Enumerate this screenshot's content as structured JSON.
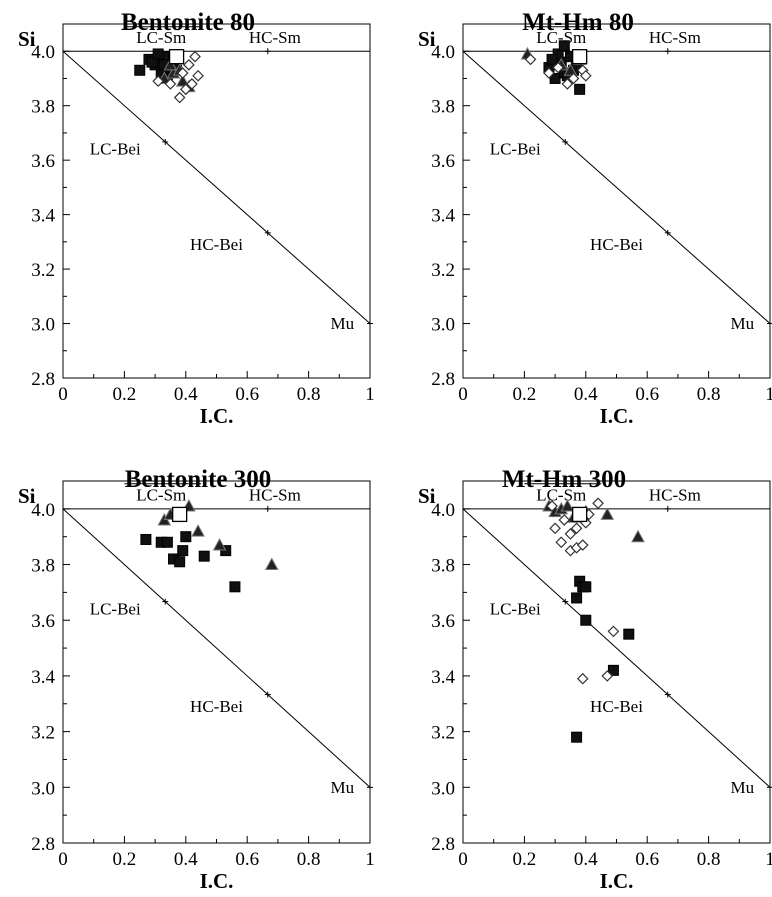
{
  "chart_data": [
    {
      "type": "scatter",
      "title": "Bentonite 80",
      "xlabel": "I.C.",
      "ylabel": "Si",
      "xlim": [
        0,
        1
      ],
      "ylim": [
        2.8,
        4.1
      ],
      "xticks": [
        "0",
        "0.2",
        "0.4",
        "0.6",
        "0.8",
        "1"
      ],
      "yticks": [
        "2.8",
        "3.0",
        "3.2",
        "3.4",
        "3.6",
        "3.8",
        "4.0"
      ],
      "annotations": [
        {
          "text": "LC-Sm",
          "x": 0.32,
          "y": 4.03
        },
        {
          "text": "HC-Sm",
          "x": 0.69,
          "y": 4.03
        },
        {
          "text": "LC-Bei",
          "x": 0.17,
          "y": 3.62
        },
        {
          "text": "HC-Bei",
          "x": 0.5,
          "y": 3.27
        },
        {
          "text": "Mu",
          "x": 0.91,
          "y": 2.98
        }
      ],
      "series": [
        {
          "marker": "filled-square",
          "x": [
            0.25,
            0.28,
            0.3,
            0.32,
            0.33,
            0.35,
            0.29,
            0.31,
            0.34,
            0.37,
            0.36,
            0.33
          ],
          "y": [
            3.93,
            3.97,
            3.95,
            3.92,
            3.98,
            3.94,
            3.96,
            3.99,
            3.9,
            3.93,
            3.97,
            3.95
          ]
        },
        {
          "marker": "filled-triangle",
          "x": [
            0.33,
            0.36,
            0.39,
            0.41,
            0.35,
            0.38
          ],
          "y": [
            3.9,
            3.92,
            3.89,
            3.87,
            3.95,
            3.93
          ]
        },
        {
          "marker": "open-diamond",
          "x": [
            0.31,
            0.35,
            0.39,
            0.41,
            0.43,
            0.44,
            0.42,
            0.4,
            0.38
          ],
          "y": [
            3.89,
            3.88,
            3.92,
            3.95,
            3.98,
            3.91,
            3.88,
            3.86,
            3.83
          ]
        },
        {
          "marker": "open-square",
          "x": [
            0.37
          ],
          "y": [
            3.98
          ]
        }
      ]
    },
    {
      "type": "scatter",
      "title": "Mt-Hm 80",
      "xlabel": "I.C.",
      "ylabel": "Si",
      "xlim": [
        0,
        1
      ],
      "ylim": [
        2.8,
        4.1
      ],
      "xticks": [
        "0",
        "0.2",
        "0.4",
        "0.6",
        "0.8",
        "1"
      ],
      "yticks": [
        "2.8",
        "3.0",
        "3.2",
        "3.4",
        "3.6",
        "3.8",
        "4.0"
      ],
      "annotations": [
        {
          "text": "LC-Sm",
          "x": 0.32,
          "y": 4.03
        },
        {
          "text": "HC-Sm",
          "x": 0.69,
          "y": 4.03
        },
        {
          "text": "LC-Bei",
          "x": 0.17,
          "y": 3.62
        },
        {
          "text": "HC-Bei",
          "x": 0.5,
          "y": 3.27
        },
        {
          "text": "Mu",
          "x": 0.91,
          "y": 2.98
        }
      ],
      "series": [
        {
          "marker": "filled-square",
          "x": [
            0.28,
            0.3,
            0.32,
            0.33,
            0.35,
            0.36,
            0.38,
            0.31,
            0.34,
            0.29,
            0.33,
            0.37
          ],
          "y": [
            3.94,
            3.9,
            3.96,
            3.92,
            3.98,
            3.93,
            3.86,
            3.99,
            3.91,
            3.97,
            4.02,
            3.95
          ]
        },
        {
          "marker": "filled-triangle",
          "x": [
            0.21,
            0.32,
            0.35,
            0.38
          ],
          "y": [
            3.99,
            3.95,
            3.93,
            3.97
          ]
        },
        {
          "marker": "open-diamond",
          "x": [
            0.22,
            0.28,
            0.31,
            0.36,
            0.39,
            0.4,
            0.34
          ],
          "y": [
            3.97,
            3.92,
            3.94,
            3.9,
            3.93,
            3.91,
            3.88
          ]
        },
        {
          "marker": "open-square",
          "x": [
            0.38
          ],
          "y": [
            3.98
          ]
        }
      ]
    },
    {
      "type": "scatter",
      "title": "Bentonite 300",
      "xlabel": "I.C.",
      "ylabel": "Si",
      "xlim": [
        0,
        1
      ],
      "ylim": [
        2.8,
        4.1
      ],
      "xticks": [
        "0",
        "0.2",
        "0.4",
        "0.6",
        "0.8",
        "1"
      ],
      "yticks": [
        "2.8",
        "3.0",
        "3.2",
        "3.4",
        "3.6",
        "3.8",
        "4.0"
      ],
      "annotations": [
        {
          "text": "LC-Sm",
          "x": 0.32,
          "y": 4.03
        },
        {
          "text": "HC-Sm",
          "x": 0.69,
          "y": 4.03
        },
        {
          "text": "LC-Bei",
          "x": 0.17,
          "y": 3.62
        },
        {
          "text": "HC-Bei",
          "x": 0.5,
          "y": 3.27
        },
        {
          "text": "Mu",
          "x": 0.91,
          "y": 2.98
        }
      ],
      "series": [
        {
          "marker": "filled-square",
          "x": [
            0.27,
            0.32,
            0.34,
            0.36,
            0.38,
            0.39,
            0.4,
            0.46,
            0.53,
            0.56
          ],
          "y": [
            3.89,
            3.88,
            3.88,
            3.82,
            3.81,
            3.85,
            3.9,
            3.83,
            3.85,
            3.72
          ]
        },
        {
          "marker": "filled-triangle",
          "x": [
            0.33,
            0.35,
            0.41,
            0.44,
            0.51,
            0.68
          ],
          "y": [
            3.96,
            3.98,
            4.01,
            3.92,
            3.87,
            3.8
          ]
        },
        {
          "marker": "open-square",
          "x": [
            0.38
          ],
          "y": [
            3.98
          ]
        }
      ]
    },
    {
      "type": "scatter",
      "title": "Mt-Hm 300",
      "xlabel": "I.C.",
      "ylabel": "Si",
      "xlim": [
        0,
        1
      ],
      "ylim": [
        2.8,
        4.1
      ],
      "xticks": [
        "0",
        "0.2",
        "0.4",
        "0.6",
        "0.8",
        "1"
      ],
      "yticks": [
        "2.8",
        "3.0",
        "3.2",
        "3.4",
        "3.6",
        "3.8",
        "4.0"
      ],
      "annotations": [
        {
          "text": "LC-Sm",
          "x": 0.32,
          "y": 4.03
        },
        {
          "text": "HC-Sm",
          "x": 0.69,
          "y": 4.03
        },
        {
          "text": "LC-Bei",
          "x": 0.17,
          "y": 3.62
        },
        {
          "text": "HC-Bei",
          "x": 0.5,
          "y": 3.27
        },
        {
          "text": "Mu",
          "x": 0.91,
          "y": 2.98
        }
      ],
      "series": [
        {
          "marker": "filled-square",
          "x": [
            0.37,
            0.38,
            0.39,
            0.4,
            0.4,
            0.49,
            0.54,
            0.37
          ],
          "y": [
            3.68,
            3.74,
            3.72,
            3.72,
            3.6,
            3.42,
            3.55,
            3.18
          ]
        },
        {
          "marker": "filled-triangle",
          "x": [
            0.28,
            0.3,
            0.32,
            0.34,
            0.36,
            0.4,
            0.47,
            0.57
          ],
          "y": [
            4.01,
            3.99,
            4.0,
            4.01,
            3.97,
            3.99,
            3.98,
            3.9
          ]
        },
        {
          "marker": "open-diamond",
          "x": [
            0.29,
            0.3,
            0.32,
            0.33,
            0.35,
            0.35,
            0.37,
            0.37,
            0.39,
            0.4,
            0.41,
            0.44,
            0.39,
            0.49,
            0.47
          ],
          "y": [
            4.01,
            3.93,
            3.88,
            3.96,
            3.91,
            3.85,
            3.93,
            3.86,
            3.87,
            3.95,
            3.98,
            4.02,
            3.39,
            3.56,
            3.4
          ]
        },
        {
          "marker": "open-square",
          "x": [
            0.38
          ],
          "y": [
            3.98
          ]
        }
      ]
    }
  ]
}
